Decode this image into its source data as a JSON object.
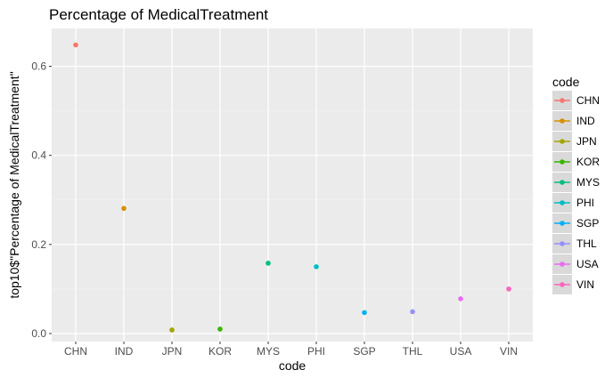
{
  "chart_data": {
    "type": "scatter",
    "title": "Percentage of MedicalTreatment",
    "xlabel": "code",
    "ylabel": "top10$\"Percentage of MedicalTreatment\"",
    "categories": [
      "CHN",
      "IND",
      "JPN",
      "KOR",
      "MYS",
      "PHI",
      "SGP",
      "THL",
      "USA",
      "VIN"
    ],
    "values": [
      0.648,
      0.281,
      0.008,
      0.01,
      0.158,
      0.15,
      0.047,
      0.049,
      0.078,
      0.1
    ],
    "ylim": [
      -0.018,
      0.685
    ],
    "yticks": [
      0.0,
      0.2,
      0.4,
      0.6
    ],
    "ytick_labels": [
      "0.0",
      "0.2",
      "0.4",
      "0.6"
    ],
    "grid": true,
    "legend": {
      "title": "code",
      "placement": "right",
      "entries": [
        "CHN",
        "IND",
        "JPN",
        "KOR",
        "MYS",
        "PHI",
        "SGP",
        "THL",
        "USA",
        "VIN"
      ]
    },
    "colors": [
      "#F8766D",
      "#D89000",
      "#A3A500",
      "#39B600",
      "#00BF7D",
      "#00BFC4",
      "#00B0F6",
      "#9590FF",
      "#E76BF3",
      "#FF62BC"
    ]
  }
}
